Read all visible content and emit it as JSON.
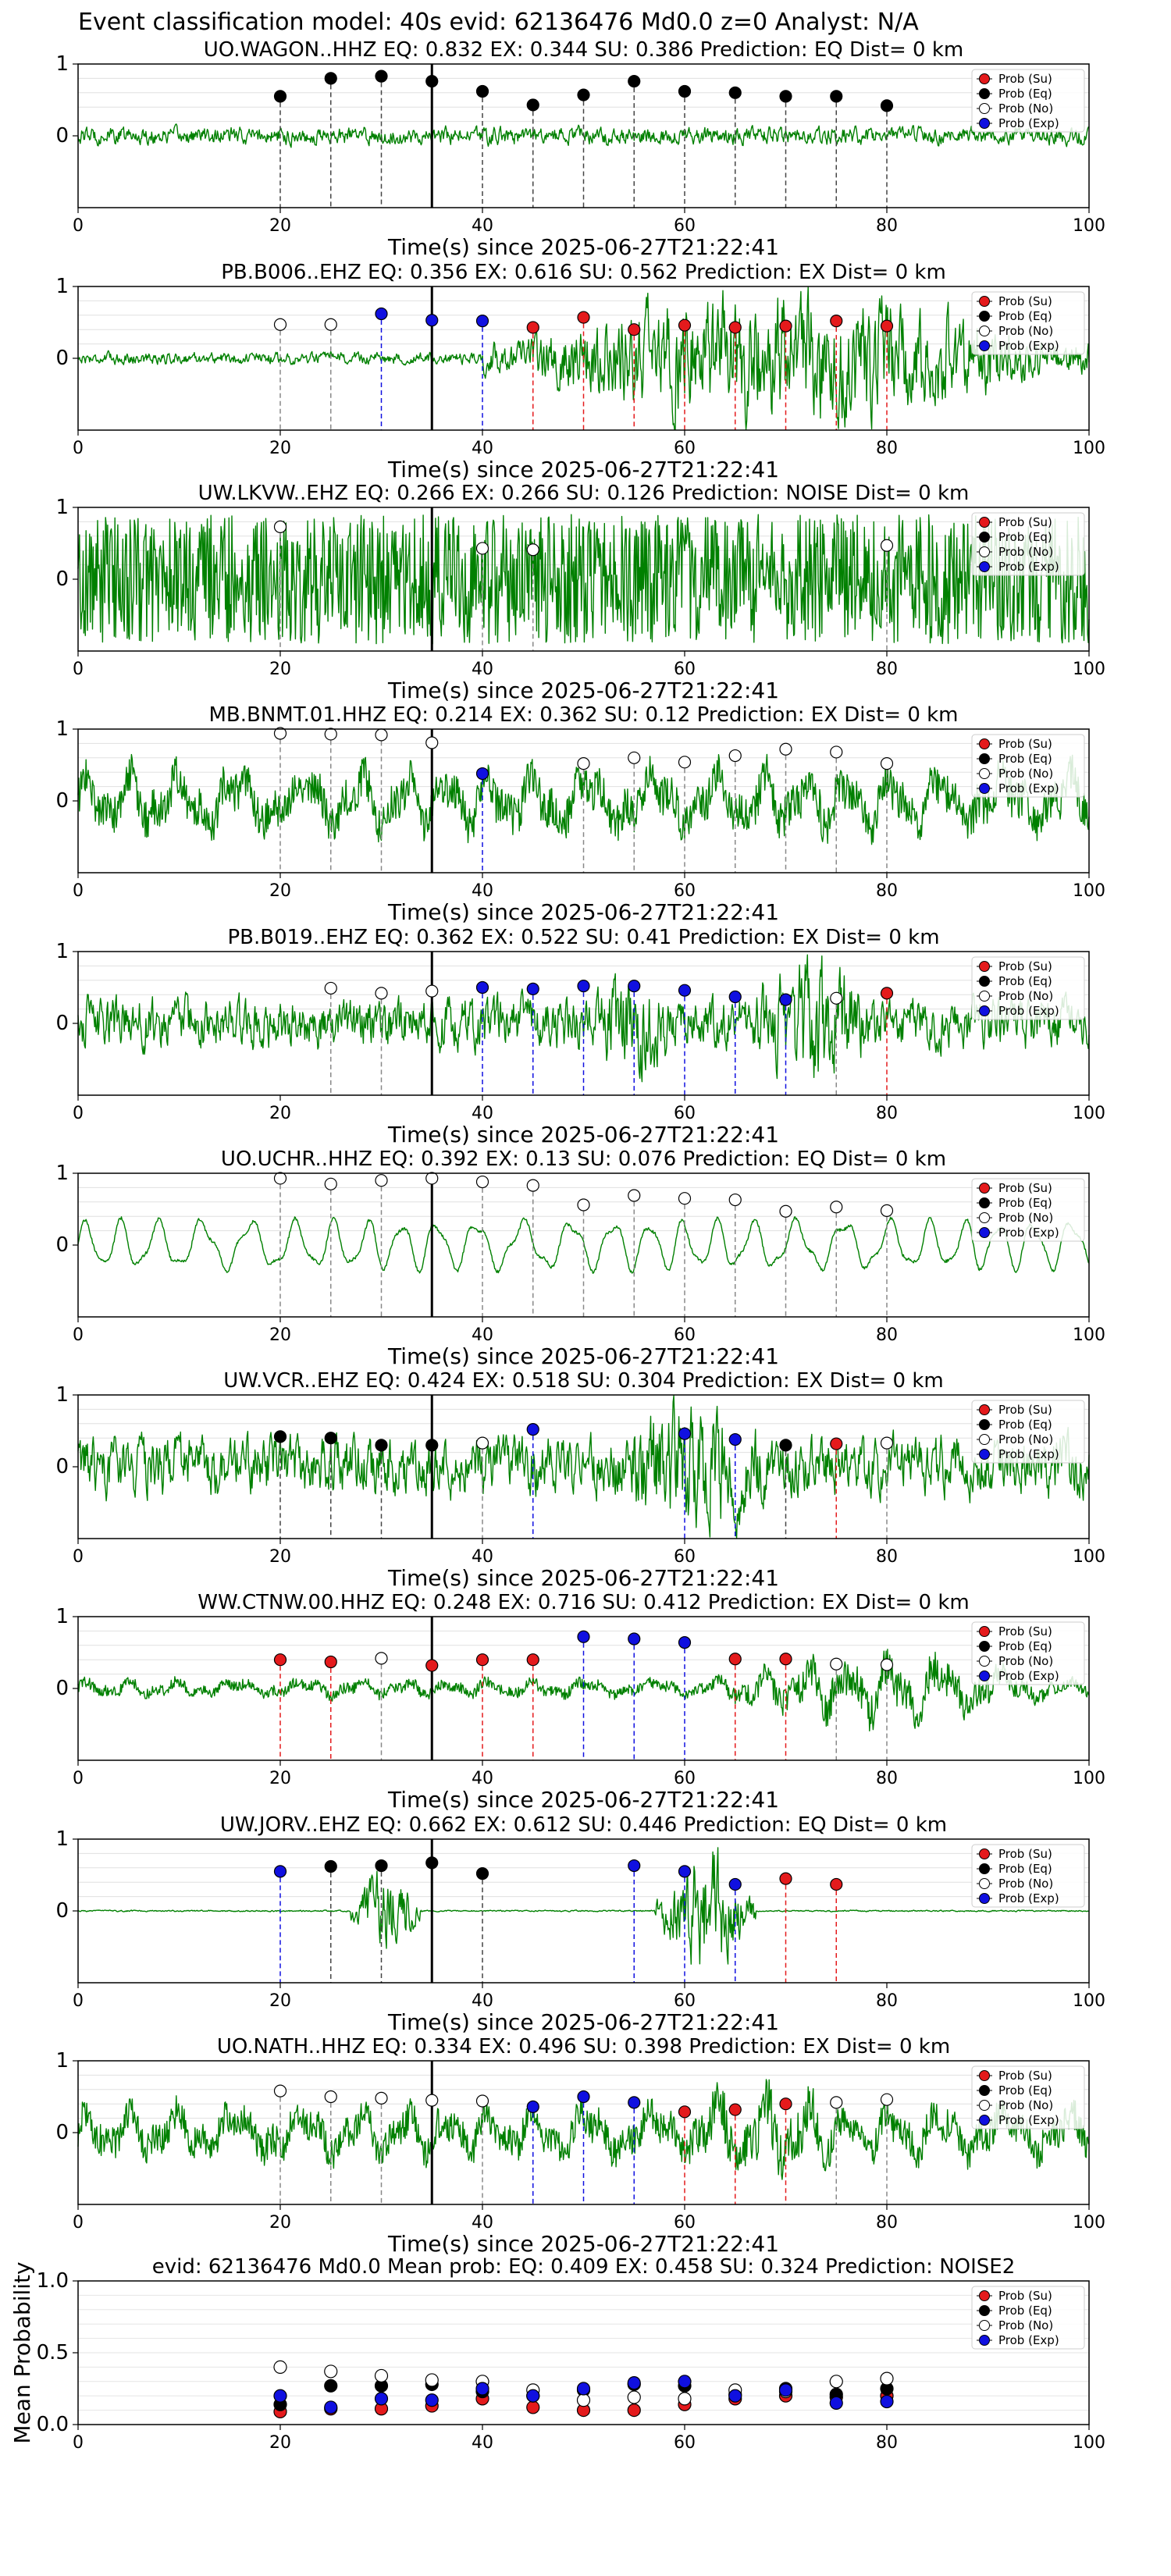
{
  "page_title": "Event classification model: 40s evid: 62136476 Md0.0 z=0 Analyst: N/A",
  "colors": {
    "waveform": "#008000",
    "su": "#e41a1c",
    "eq": "#000000",
    "no": "#ffffff",
    "exp": "#1010e0",
    "pick_line": "#000000"
  },
  "legend_labels": [
    "Prob (Su)",
    "Prob (Eq)",
    "Prob (No)",
    "Prob (Exp)"
  ],
  "xlabel": "Time(s) since 2025-06-27T21:22:41",
  "chart_data": [
    {
      "type": "line",
      "title": "UO.WAGON..HHZ   EQ: 0.832  EX: 0.344  SU: 0.386   Prediction: EQ    Dist= 0 km",
      "xlim": [
        0,
        100
      ],
      "ylim": [
        -1,
        1
      ],
      "xticks": [
        0,
        20,
        40,
        60,
        80,
        100
      ],
      "yticks": [
        0,
        1
      ],
      "pick_time": 35,
      "wave": {
        "amp": 0.12,
        "style": "noise",
        "bursts": []
      },
      "legend": "top-right",
      "points": [
        {
          "t": 20,
          "p": 0.55,
          "c": "eq"
        },
        {
          "t": 25,
          "p": 0.8,
          "c": "eq"
        },
        {
          "t": 30,
          "p": 0.83,
          "c": "eq"
        },
        {
          "t": 35,
          "p": 0.76,
          "c": "eq"
        },
        {
          "t": 40,
          "p": 0.62,
          "c": "eq"
        },
        {
          "t": 45,
          "p": 0.43,
          "c": "eq"
        },
        {
          "t": 50,
          "p": 0.57,
          "c": "eq"
        },
        {
          "t": 55,
          "p": 0.76,
          "c": "eq"
        },
        {
          "t": 60,
          "p": 0.62,
          "c": "eq"
        },
        {
          "t": 65,
          "p": 0.6,
          "c": "eq"
        },
        {
          "t": 70,
          "p": 0.55,
          "c": "eq"
        },
        {
          "t": 75,
          "p": 0.55,
          "c": "eq"
        },
        {
          "t": 80,
          "p": 0.42,
          "c": "eq"
        }
      ]
    },
    {
      "type": "line",
      "title": "PB.B006..EHZ   EQ: 0.356  EX: 0.616  SU: 0.562   Prediction: EX    Dist= 0 km",
      "xlim": [
        0,
        100
      ],
      "ylim": [
        -1,
        1
      ],
      "xticks": [
        0,
        20,
        40,
        60,
        80,
        100
      ],
      "yticks": [
        0,
        1
      ],
      "pick_time": 35,
      "wave": {
        "amp": 0.08,
        "style": "noise",
        "bursts": [
          [
            40,
            100,
            0.9
          ]
        ]
      },
      "legend": "top-right",
      "points": [
        {
          "t": 20,
          "p": 0.47,
          "c": "no"
        },
        {
          "t": 25,
          "p": 0.47,
          "c": "no"
        },
        {
          "t": 30,
          "p": 0.62,
          "c": "exp"
        },
        {
          "t": 35,
          "p": 0.53,
          "c": "exp"
        },
        {
          "t": 40,
          "p": 0.52,
          "c": "exp"
        },
        {
          "t": 45,
          "p": 0.43,
          "c": "su"
        },
        {
          "t": 50,
          "p": 0.57,
          "c": "su"
        },
        {
          "t": 55,
          "p": 0.4,
          "c": "su"
        },
        {
          "t": 60,
          "p": 0.46,
          "c": "su"
        },
        {
          "t": 65,
          "p": 0.43,
          "c": "su"
        },
        {
          "t": 70,
          "p": 0.45,
          "c": "su"
        },
        {
          "t": 75,
          "p": 0.52,
          "c": "su"
        },
        {
          "t": 80,
          "p": 0.45,
          "c": "su"
        }
      ]
    },
    {
      "type": "line",
      "title": "UW.LKVW..EHZ   EQ: 0.266  EX: 0.266  SU: 0.126   Prediction: NOISE    Dist= 0 km",
      "xlim": [
        0,
        100
      ],
      "ylim": [
        -1,
        1
      ],
      "xticks": [
        0,
        20,
        40,
        60,
        80,
        100
      ],
      "yticks": [
        0,
        1
      ],
      "pick_time": 35,
      "wave": {
        "amp": 0.9,
        "style": "dense",
        "bursts": []
      },
      "legend": "top-right",
      "points": [
        {
          "t": 20,
          "p": 0.73,
          "c": "no"
        },
        {
          "t": 40,
          "p": 0.43,
          "c": "no"
        },
        {
          "t": 45,
          "p": 0.41,
          "c": "no"
        },
        {
          "t": 80,
          "p": 0.47,
          "c": "no"
        }
      ]
    },
    {
      "type": "line",
      "title": "MB.BNMT.01.HHZ   EQ: 0.214  EX: 0.362  SU: 0.12   Prediction: EX    Dist= 0 km",
      "xlim": [
        0,
        100
      ],
      "ylim": [
        -1,
        1
      ],
      "xticks": [
        0,
        20,
        40,
        60,
        80,
        100
      ],
      "yticks": [
        0,
        1
      ],
      "pick_time": 35,
      "wave": {
        "amp": 0.55,
        "style": "wavy",
        "bursts": []
      },
      "legend": "top-right",
      "points": [
        {
          "t": 20,
          "p": 0.94,
          "c": "no"
        },
        {
          "t": 25,
          "p": 0.93,
          "c": "no"
        },
        {
          "t": 30,
          "p": 0.92,
          "c": "no"
        },
        {
          "t": 35,
          "p": 0.81,
          "c": "no"
        },
        {
          "t": 40,
          "p": 0.38,
          "c": "exp"
        },
        {
          "t": 50,
          "p": 0.52,
          "c": "no"
        },
        {
          "t": 55,
          "p": 0.6,
          "c": "no"
        },
        {
          "t": 60,
          "p": 0.54,
          "c": "no"
        },
        {
          "t": 65,
          "p": 0.63,
          "c": "no"
        },
        {
          "t": 70,
          "p": 0.72,
          "c": "no"
        },
        {
          "t": 75,
          "p": 0.68,
          "c": "no"
        },
        {
          "t": 80,
          "p": 0.52,
          "c": "no"
        }
      ]
    },
    {
      "type": "line",
      "title": "PB.B019..EHZ   EQ: 0.362  EX: 0.522  SU: 0.41   Prediction: EX    Dist= 0 km",
      "xlim": [
        0,
        100
      ],
      "ylim": [
        -1,
        1
      ],
      "xticks": [
        0,
        20,
        40,
        60,
        80,
        100
      ],
      "yticks": [
        0,
        1
      ],
      "pick_time": 35,
      "wave": {
        "amp": 0.35,
        "style": "noise",
        "bursts": [
          [
            50,
            60,
            0.75
          ],
          [
            65,
            80,
            0.85
          ]
        ]
      },
      "legend": "top-right",
      "points": [
        {
          "t": 25,
          "p": 0.49,
          "c": "no"
        },
        {
          "t": 30,
          "p": 0.42,
          "c": "no"
        },
        {
          "t": 35,
          "p": 0.45,
          "c": "no"
        },
        {
          "t": 40,
          "p": 0.5,
          "c": "exp"
        },
        {
          "t": 45,
          "p": 0.48,
          "c": "exp"
        },
        {
          "t": 50,
          "p": 0.52,
          "c": "exp"
        },
        {
          "t": 55,
          "p": 0.52,
          "c": "exp"
        },
        {
          "t": 60,
          "p": 0.46,
          "c": "exp"
        },
        {
          "t": 65,
          "p": 0.37,
          "c": "exp"
        },
        {
          "t": 70,
          "p": 0.33,
          "c": "exp"
        },
        {
          "t": 75,
          "p": 0.35,
          "c": "no"
        },
        {
          "t": 80,
          "p": 0.42,
          "c": "su"
        }
      ]
    },
    {
      "type": "line",
      "title": "UO.UCHR..HHZ   EQ: 0.392  EX: 0.13  SU: 0.076   Prediction: EQ    Dist= 0 km",
      "xlim": [
        0,
        100
      ],
      "ylim": [
        -1,
        1
      ],
      "xticks": [
        0,
        20,
        40,
        60,
        80,
        100
      ],
      "yticks": [
        0,
        1
      ],
      "pick_time": 35,
      "wave": {
        "amp": 0.42,
        "style": "smooth",
        "bursts": []
      },
      "legend": "top-right",
      "points": [
        {
          "t": 20,
          "p": 0.93,
          "c": "no"
        },
        {
          "t": 25,
          "p": 0.85,
          "c": "no"
        },
        {
          "t": 30,
          "p": 0.9,
          "c": "no"
        },
        {
          "t": 35,
          "p": 0.93,
          "c": "no"
        },
        {
          "t": 40,
          "p": 0.88,
          "c": "no"
        },
        {
          "t": 45,
          "p": 0.83,
          "c": "no"
        },
        {
          "t": 50,
          "p": 0.56,
          "c": "no"
        },
        {
          "t": 55,
          "p": 0.69,
          "c": "no"
        },
        {
          "t": 60,
          "p": 0.65,
          "c": "no"
        },
        {
          "t": 65,
          "p": 0.63,
          "c": "no"
        },
        {
          "t": 70,
          "p": 0.47,
          "c": "no"
        },
        {
          "t": 75,
          "p": 0.53,
          "c": "no"
        },
        {
          "t": 80,
          "p": 0.48,
          "c": "no"
        }
      ]
    },
    {
      "type": "line",
      "title": "UW.VCR..EHZ   EQ: 0.424  EX: 0.518  SU: 0.304   Prediction: EX    Dist= 0 km",
      "xlim": [
        0,
        100
      ],
      "ylim": [
        -1,
        1
      ],
      "xticks": [
        0,
        20,
        40,
        60,
        80,
        100
      ],
      "yticks": [
        0,
        1
      ],
      "pick_time": 35,
      "wave": {
        "amp": 0.4,
        "style": "noise",
        "bursts": [
          [
            50,
            72,
            0.85
          ]
        ]
      },
      "legend": "top-right",
      "points": [
        {
          "t": 20,
          "p": 0.42,
          "c": "eq"
        },
        {
          "t": 25,
          "p": 0.4,
          "c": "eq"
        },
        {
          "t": 30,
          "p": 0.3,
          "c": "eq"
        },
        {
          "t": 35,
          "p": 0.3,
          "c": "eq"
        },
        {
          "t": 40,
          "p": 0.33,
          "c": "no"
        },
        {
          "t": 45,
          "p": 0.52,
          "c": "exp"
        },
        {
          "t": 60,
          "p": 0.46,
          "c": "exp"
        },
        {
          "t": 65,
          "p": 0.38,
          "c": "exp"
        },
        {
          "t": 70,
          "p": 0.3,
          "c": "eq"
        },
        {
          "t": 75,
          "p": 0.32,
          "c": "su"
        },
        {
          "t": 80,
          "p": 0.33,
          "c": "no"
        }
      ]
    },
    {
      "type": "line",
      "title": "WW.CTNW.00.HHZ   EQ: 0.248  EX: 0.716  SU: 0.412   Prediction: EX    Dist= 0 km",
      "xlim": [
        0,
        100
      ],
      "ylim": [
        -1,
        1
      ],
      "xticks": [
        0,
        20,
        40,
        60,
        80,
        100
      ],
      "yticks": [
        0,
        1
      ],
      "pick_time": 35,
      "wave": {
        "amp": 0.15,
        "style": "wavy",
        "bursts": [
          [
            60,
            100,
            0.55
          ]
        ]
      },
      "legend": "top-right",
      "points": [
        {
          "t": 20,
          "p": 0.4,
          "c": "su"
        },
        {
          "t": 25,
          "p": 0.37,
          "c": "su"
        },
        {
          "t": 30,
          "p": 0.42,
          "c": "no"
        },
        {
          "t": 35,
          "p": 0.32,
          "c": "su"
        },
        {
          "t": 40,
          "p": 0.4,
          "c": "su"
        },
        {
          "t": 45,
          "p": 0.4,
          "c": "su"
        },
        {
          "t": 50,
          "p": 0.72,
          "c": "exp"
        },
        {
          "t": 55,
          "p": 0.69,
          "c": "exp"
        },
        {
          "t": 60,
          "p": 0.64,
          "c": "exp"
        },
        {
          "t": 65,
          "p": 0.41,
          "c": "su"
        },
        {
          "t": 70,
          "p": 0.41,
          "c": "su"
        },
        {
          "t": 75,
          "p": 0.34,
          "c": "no"
        },
        {
          "t": 80,
          "p": 0.33,
          "c": "no"
        }
      ]
    },
    {
      "type": "line",
      "title": "UW.JORV..EHZ   EQ: 0.662  EX: 0.612  SU: 0.446   Prediction: EQ    Dist= 0 km",
      "xlim": [
        0,
        100
      ],
      "ylim": [
        -1,
        1
      ],
      "xticks": [
        0,
        20,
        40,
        60,
        80,
        100
      ],
      "yticks": [
        0,
        1
      ],
      "pick_time": 35,
      "wave": {
        "amp": 0.01,
        "style": "noise",
        "bursts": [
          [
            27,
            34,
            0.55
          ],
          [
            57,
            67,
            0.85
          ]
        ]
      },
      "legend": "top-right",
      "points": [
        {
          "t": 20,
          "p": 0.55,
          "c": "exp"
        },
        {
          "t": 25,
          "p": 0.62,
          "c": "eq"
        },
        {
          "t": 30,
          "p": 0.63,
          "c": "eq"
        },
        {
          "t": 35,
          "p": 0.67,
          "c": "eq"
        },
        {
          "t": 40,
          "p": 0.52,
          "c": "eq"
        },
        {
          "t": 55,
          "p": 0.63,
          "c": "exp"
        },
        {
          "t": 60,
          "p": 0.55,
          "c": "exp"
        },
        {
          "t": 65,
          "p": 0.37,
          "c": "exp"
        },
        {
          "t": 70,
          "p": 0.45,
          "c": "su"
        },
        {
          "t": 75,
          "p": 0.37,
          "c": "su"
        }
      ]
    },
    {
      "type": "line",
      "title": "UO.NATH..HHZ   EQ: 0.334  EX: 0.496  SU: 0.398   Prediction: EX    Dist= 0 km",
      "xlim": [
        0,
        100
      ],
      "ylim": [
        -1,
        1
      ],
      "xticks": [
        0,
        20,
        40,
        60,
        80,
        100
      ],
      "yticks": [
        0,
        1
      ],
      "pick_time": 35,
      "wave": {
        "amp": 0.45,
        "style": "wavy",
        "bursts": [
          [
            55,
            80,
            0.75
          ]
        ]
      },
      "legend": "top-right",
      "points": [
        {
          "t": 20,
          "p": 0.58,
          "c": "no"
        },
        {
          "t": 25,
          "p": 0.5,
          "c": "no"
        },
        {
          "t": 30,
          "p": 0.48,
          "c": "no"
        },
        {
          "t": 35,
          "p": 0.45,
          "c": "no"
        },
        {
          "t": 40,
          "p": 0.44,
          "c": "no"
        },
        {
          "t": 45,
          "p": 0.36,
          "c": "exp"
        },
        {
          "t": 50,
          "p": 0.5,
          "c": "exp"
        },
        {
          "t": 55,
          "p": 0.42,
          "c": "exp"
        },
        {
          "t": 60,
          "p": 0.29,
          "c": "su"
        },
        {
          "t": 65,
          "p": 0.32,
          "c": "su"
        },
        {
          "t": 70,
          "p": 0.4,
          "c": "su"
        },
        {
          "t": 75,
          "p": 0.42,
          "c": "no"
        },
        {
          "t": 80,
          "p": 0.46,
          "c": "no"
        }
      ]
    },
    {
      "type": "scatter",
      "title": "evid: 62136476  Md0.0   Mean prob:   EQ: 0.409  EX: 0.458  SU: 0.324   Prediction: NOISE2",
      "ylabel": "Mean Probability",
      "xlim": [
        0,
        100
      ],
      "ylim": [
        0,
        1
      ],
      "xticks": [
        0,
        20,
        40,
        60,
        80,
        100
      ],
      "yticks": [
        0.0,
        0.5,
        1.0
      ],
      "legend": "top-right",
      "series": [
        {
          "name": "Prob (Su)",
          "c": "su",
          "x": [
            20,
            25,
            30,
            35,
            40,
            45,
            50,
            55,
            60,
            65,
            70,
            75,
            80
          ],
          "y": [
            0.09,
            0.11,
            0.11,
            0.13,
            0.18,
            0.12,
            0.1,
            0.1,
            0.14,
            0.18,
            0.2,
            0.19,
            0.2
          ]
        },
        {
          "name": "Prob (Eq)",
          "c": "eq",
          "x": [
            20,
            25,
            30,
            35,
            40,
            45,
            50,
            55,
            60,
            65,
            70,
            75,
            80
          ],
          "y": [
            0.14,
            0.27,
            0.27,
            0.28,
            0.23,
            0.2,
            0.24,
            0.28,
            0.27,
            0.21,
            0.25,
            0.21,
            0.25
          ]
        },
        {
          "name": "Prob (No)",
          "c": "no",
          "x": [
            20,
            25,
            30,
            35,
            40,
            45,
            50,
            55,
            60,
            65,
            70,
            75,
            80
          ],
          "y": [
            0.4,
            0.37,
            0.34,
            0.31,
            0.3,
            0.24,
            0.17,
            0.19,
            0.18,
            0.24,
            0.23,
            0.3,
            0.32
          ]
        },
        {
          "name": "Prob (Exp)",
          "c": "exp",
          "x": [
            20,
            25,
            30,
            35,
            40,
            45,
            50,
            55,
            60,
            65,
            70,
            75,
            80
          ],
          "y": [
            0.2,
            0.12,
            0.18,
            0.17,
            0.25,
            0.2,
            0.25,
            0.29,
            0.3,
            0.2,
            0.24,
            0.15,
            0.16
          ]
        }
      ]
    }
  ]
}
